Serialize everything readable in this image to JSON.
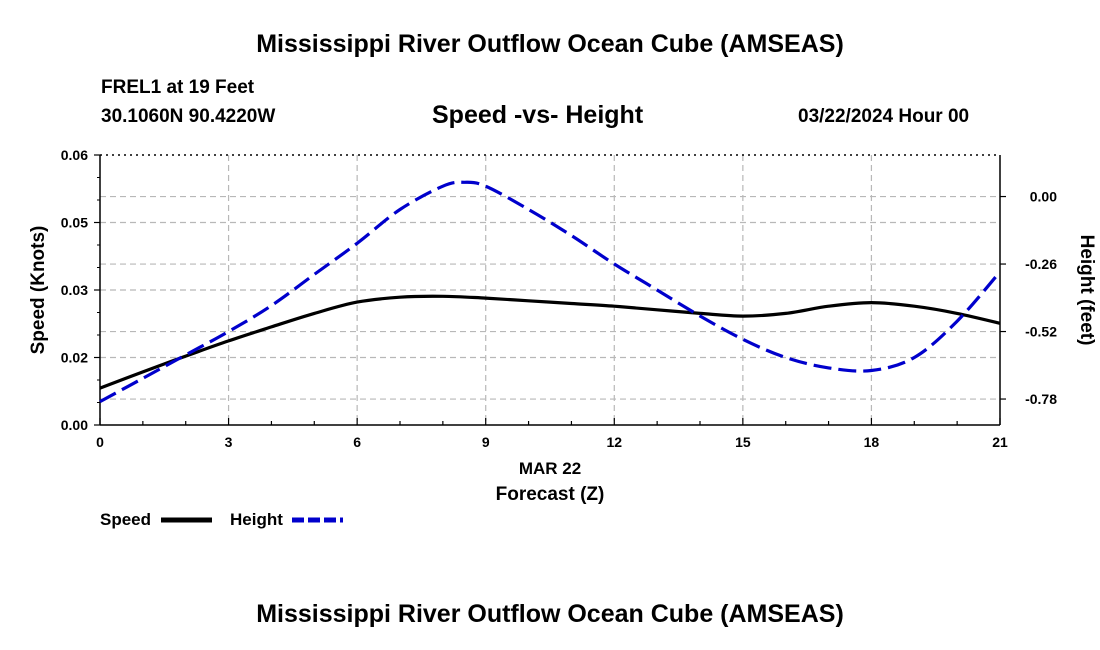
{
  "page": {
    "title_top": "Mississippi River Outflow Ocean Cube (AMSEAS)",
    "title_bottom": "Mississippi River Outflow Ocean Cube (AMSEAS)",
    "station": "FREL1 at 19 Feet",
    "coords": "30.1060N  90.4220W",
    "date": "03/22/2024 Hour 00"
  },
  "chart_data": {
    "type": "line",
    "title": "Speed -vs- Height",
    "xlabel_date": "MAR 22",
    "xlabel": "Forecast (Z)",
    "ylabel": "Speed (Knots)",
    "y2label": "Height (feet)",
    "xlim": [
      0,
      21
    ],
    "ylim": [
      0,
      0.06
    ],
    "y2lim": [
      -0.88,
      0.16
    ],
    "x_ticks": [
      "0",
      "3",
      "6",
      "9",
      "12",
      "15",
      "18",
      "21"
    ],
    "y_ticks": [
      "0.00",
      "0.02",
      "0.03",
      "0.05",
      "0.06"
    ],
    "y_tick_values": [
      0,
      0.015,
      0.03,
      0.045,
      0.06
    ],
    "y2_ticks": [
      "0.00",
      "-0.26",
      "-0.52",
      "-0.78"
    ],
    "y2_tick_values": [
      0,
      -0.26,
      -0.52,
      -0.78
    ],
    "grid": true,
    "legend_position": "bottom-left",
    "series": [
      {
        "name": "Speed",
        "axis": "left",
        "color": "#000000",
        "dash": "solid",
        "x": [
          0,
          1,
          2,
          3,
          4,
          5,
          6,
          7,
          8,
          9,
          10,
          11,
          12,
          13,
          14,
          15,
          16,
          17,
          18,
          19,
          20,
          21
        ],
        "values": [
          0.0082,
          0.0118,
          0.0153,
          0.0187,
          0.0218,
          0.0248,
          0.0273,
          0.0284,
          0.0286,
          0.0282,
          0.0276,
          0.027,
          0.0264,
          0.0256,
          0.0248,
          0.0242,
          0.0248,
          0.0264,
          0.0272,
          0.0264,
          0.0248,
          0.0226
        ]
      },
      {
        "name": "Height",
        "axis": "right",
        "color": "#0000cc",
        "dash": "dashed",
        "x": [
          0,
          1,
          2,
          3,
          4,
          5,
          6,
          7,
          8,
          8.5,
          9,
          10,
          11,
          12,
          13,
          14,
          15,
          16,
          17,
          18,
          19,
          20,
          21
        ],
        "values": [
          -0.79,
          -0.7,
          -0.61,
          -0.52,
          -0.42,
          -0.3,
          -0.18,
          -0.05,
          0.04,
          0.055,
          0.04,
          -0.05,
          -0.15,
          -0.26,
          -0.36,
          -0.46,
          -0.55,
          -0.62,
          -0.66,
          -0.67,
          -0.62,
          -0.48,
          -0.29
        ]
      }
    ]
  }
}
